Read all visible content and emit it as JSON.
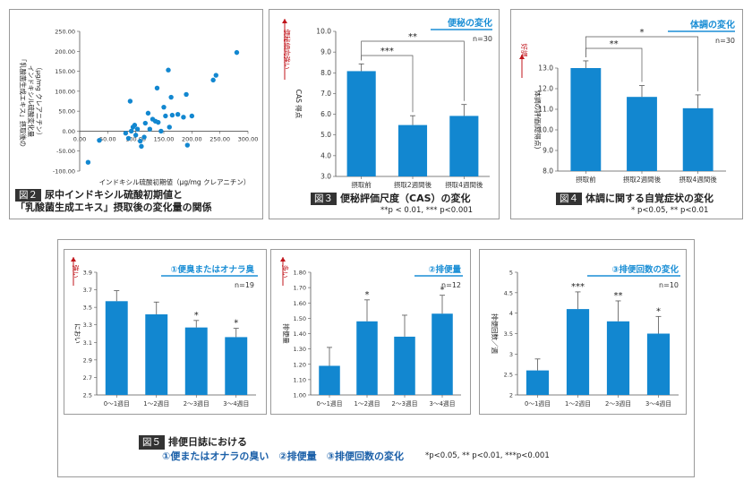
{
  "colors": {
    "bar": "#1287d0",
    "accent": "#1a8ed5",
    "red": "#c0141b",
    "axis": "#555555"
  },
  "figures": {
    "fig2": {
      "label": "図２",
      "caption_line1": "尿中インドキシル硫酸初期値と",
      "caption_line2": "「乳酸菌生成エキス」摂取後の変化量の関係"
    },
    "fig3": {
      "label": "図３",
      "caption": "便秘評価尺度（CAS）の変化",
      "note": "**p < 0.01, *** p<0.001"
    },
    "fig4": {
      "label": "図４",
      "caption": "体調に関する自覚症状の変化",
      "note": "* p<0.05, ** p<0.01"
    },
    "fig5": {
      "label": "図５",
      "caption_line1": "排便日誌における",
      "caption_line2": "①便またはオナラの臭い　②排便量　③排便回数の変化",
      "note": "*p<0.05, ** p<0.01, ***p<0.001"
    }
  },
  "chart_data": [
    {
      "id": "fig2_scatter",
      "type": "scatter",
      "xlabel": "インドキシル硫酸初期値（μg/mg クレアニチン）",
      "ylabel_lines": [
        "「乳酸菌生成エキス」摂取後の",
        "インドキシル硫酸変化量",
        "（μg/mg クレアニチン）"
      ],
      "xlim": [
        0,
        300
      ],
      "ylim": [
        -100,
        250
      ],
      "xticks": [
        "0.00",
        "50.00",
        "100.00",
        "150.00",
        "200.00",
        "250.00",
        "300.00"
      ],
      "xtick_values": [
        0,
        50,
        100,
        150,
        200,
        250,
        300
      ],
      "yticks": [
        "250.00",
        "200.00",
        "150.00",
        "100.00",
        "50.00",
        "0.00",
        "-50.00",
        "-100.00"
      ],
      "ytick_values": [
        250,
        200,
        150,
        100,
        50,
        0,
        -50,
        -100
      ],
      "points": [
        [
          15,
          -78
        ],
        [
          35,
          -23
        ],
        [
          82,
          -5
        ],
        [
          87,
          -18
        ],
        [
          90,
          75
        ],
        [
          92,
          0
        ],
        [
          95,
          10
        ],
        [
          98,
          15
        ],
        [
          100,
          -10
        ],
        [
          103,
          5
        ],
        [
          108,
          -25
        ],
        [
          110,
          -38
        ],
        [
          115,
          -15
        ],
        [
          117,
          20
        ],
        [
          122,
          45
        ],
        [
          125,
          5
        ],
        [
          130,
          30
        ],
        [
          135,
          25
        ],
        [
          138,
          108
        ],
        [
          140,
          22
        ],
        [
          145,
          0
        ],
        [
          150,
          60
        ],
        [
          153,
          38
        ],
        [
          158,
          153
        ],
        [
          160,
          10
        ],
        [
          163,
          85
        ],
        [
          165,
          40
        ],
        [
          175,
          42
        ],
        [
          185,
          35
        ],
        [
          190,
          92
        ],
        [
          192,
          -35
        ],
        [
          200,
          38
        ],
        [
          238,
          128
        ],
        [
          243,
          140
        ],
        [
          280,
          197
        ]
      ]
    },
    {
      "id": "fig3_bar",
      "type": "bar",
      "title": "便秘の変化",
      "n_label": "n=30",
      "ylabel": "CAS 得点",
      "direction_label": "便秘傾向強い",
      "categories": [
        "摂取前",
        "摂取2週間後",
        "摂取4週間後"
      ],
      "values": [
        8.08,
        5.48,
        5.92
      ],
      "errors": [
        0.35,
        0.45,
        0.55
      ],
      "ylim": [
        3.0,
        10.0
      ],
      "yticks": [
        "10.0",
        "9.0",
        "8.0",
        "7.0",
        "6.0",
        "5.0",
        "4.0",
        "3.0"
      ],
      "ytick_values": [
        10,
        9,
        8,
        7,
        6,
        5,
        4,
        3
      ],
      "brackets": [
        {
          "from": 0,
          "to": 1,
          "label": "***"
        },
        {
          "from": 0,
          "to": 2,
          "label": "**"
        }
      ]
    },
    {
      "id": "fig4_bar",
      "type": "bar",
      "title": "体調の変化",
      "n_label": "n=30",
      "ylabel": "体調の評価(総得点)",
      "direction_label": "好調",
      "categories": [
        "摂取前",
        "摂取2週間後",
        "摂取4週間後"
      ],
      "values": [
        13.0,
        11.6,
        11.05
      ],
      "errors": [
        0.35,
        0.55,
        0.65
      ],
      "ylim": [
        8.0,
        13.0
      ],
      "yticks": [
        "13.0",
        "12.0",
        "11.0",
        "10.0",
        "9.0",
        "8.0"
      ],
      "ytick_values": [
        13,
        12,
        11,
        10,
        9,
        8
      ],
      "brackets": [
        {
          "from": 0,
          "to": 1,
          "label": "**"
        },
        {
          "from": 0,
          "to": 2,
          "label": "*"
        }
      ]
    },
    {
      "id": "fig5a_bar",
      "type": "bar",
      "title": "①便臭またはオナラ臭",
      "n_label": "n=19",
      "ylabel": "におい",
      "direction_label": "強い",
      "categories": [
        "0〜1週目",
        "1〜2週目",
        "2〜3週目",
        "3〜4週目"
      ],
      "values": [
        3.57,
        3.42,
        3.27,
        3.16
      ],
      "errors": [
        0.12,
        0.14,
        0.08,
        0.1
      ],
      "sig": [
        "",
        "",
        "*",
        "*"
      ],
      "ylim": [
        2.5,
        3.9
      ],
      "yticks": [
        "3.9",
        "3.7",
        "3.5",
        "3.3",
        "3.1",
        "2.9",
        "2.7",
        "2.5"
      ],
      "ytick_values": [
        3.9,
        3.7,
        3.5,
        3.3,
        3.1,
        2.9,
        2.7,
        2.5
      ]
    },
    {
      "id": "fig5b_bar",
      "type": "bar",
      "title": "②排便量",
      "n_label": "n=12",
      "ylabel": "排便量",
      "direction_label": "多い",
      "categories": [
        "0〜1週目",
        "1〜2週目",
        "2〜3週目",
        "3〜4週目"
      ],
      "values": [
        1.19,
        1.48,
        1.38,
        1.53
      ],
      "errors": [
        0.12,
        0.14,
        0.14,
        0.12
      ],
      "sig": [
        "",
        "*",
        "",
        "*"
      ],
      "ylim": [
        1.0,
        1.8
      ],
      "yticks": [
        "1.80",
        "1.70",
        "1.60",
        "1.50",
        "1.40",
        "1.30",
        "1.20",
        "1.10",
        "1.00"
      ],
      "ytick_values": [
        1.8,
        1.7,
        1.6,
        1.5,
        1.4,
        1.3,
        1.2,
        1.1,
        1.0
      ]
    },
    {
      "id": "fig5c_bar",
      "type": "bar",
      "title": "③排便回数の変化",
      "n_label": "n=10",
      "ylabel": "排便回数／週",
      "direction_label": "",
      "categories": [
        "0〜1週目",
        "1〜2週目",
        "2〜3週目",
        "3〜4週目"
      ],
      "values": [
        2.6,
        4.1,
        3.8,
        3.5
      ],
      "errors": [
        0.28,
        0.42,
        0.5,
        0.42
      ],
      "sig": [
        "",
        "***",
        "**",
        "*"
      ],
      "ylim": [
        2.0,
        5.0
      ],
      "yticks": [
        "5",
        "4.5",
        "4",
        "3.5",
        "3",
        "2.5",
        "2"
      ],
      "ytick_values": [
        5,
        4.5,
        4,
        3.5,
        3,
        2.5,
        2
      ]
    }
  ]
}
